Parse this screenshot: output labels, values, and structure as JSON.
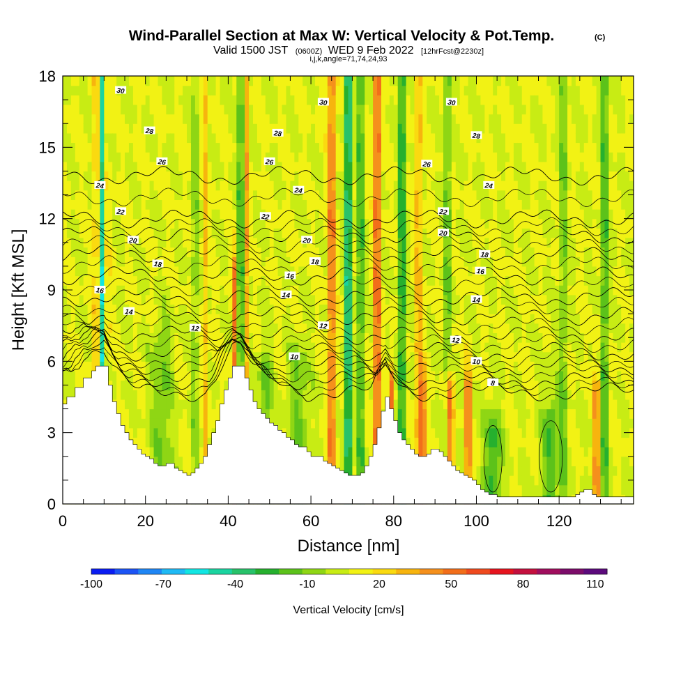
{
  "chart_data": {
    "type": "heatmap",
    "title": "Wind-Parallel Section at Max W: Vertical Velocity & Pot.Temp.",
    "copyright": "(C)",
    "subtitle_main": "Valid 1500 JST",
    "subtitle_z": "(0600Z)",
    "subtitle_date": "WED 9 Feb 2022",
    "subtitle_fcst": "[12hrFcst@2230z]",
    "subtitle_ijk": "i,j,k,angle=71,74,24,93",
    "xlabel": "Distance [nm]",
    "ylabel": "Height [Kft MSL]",
    "xlim": [
      0,
      138
    ],
    "ylim": [
      0,
      18
    ],
    "x_ticks": [
      "0",
      "20",
      "40",
      "60",
      "80",
      "100",
      "120"
    ],
    "y_ticks": [
      "0",
      "3",
      "6",
      "9",
      "12",
      "15",
      "18"
    ],
    "colorbar": {
      "label": "Vertical Velocity [cm/s]",
      "tick_labels": [
        "-100",
        "-70",
        "-40",
        "-10",
        "20",
        "50",
        "80",
        "110"
      ],
      "colors": [
        "#0a1cf2",
        "#1c54f5",
        "#1f86f5",
        "#1fbaf5",
        "#12e6e3",
        "#1ad4a0",
        "#28c26a",
        "#26b02e",
        "#5cc21a",
        "#8fd614",
        "#c8ec14",
        "#f2f214",
        "#fada10",
        "#f7b40e",
        "#f5901c",
        "#f26e1a",
        "#ef4a1e",
        "#e6141e",
        "#c4103e",
        "#a00e5e",
        "#7c0c6a",
        "#5c0a7c"
      ],
      "range": [
        -100,
        115
      ]
    },
    "terrain_profile": {
      "x": [
        0,
        1,
        2,
        3,
        4,
        5,
        6,
        7,
        8,
        9,
        10,
        11,
        12,
        13,
        14,
        15,
        16,
        17,
        18,
        19,
        20,
        21,
        22,
        23,
        24,
        25,
        26,
        27,
        28,
        29,
        30,
        31,
        32,
        33,
        34,
        35,
        36,
        37,
        38,
        39,
        40,
        41,
        42,
        43,
        44,
        45,
        46,
        47,
        48,
        49,
        50,
        51,
        52,
        53,
        54,
        55,
        56,
        57,
        58,
        59,
        60,
        61,
        62,
        63,
        64,
        65,
        66,
        67,
        68,
        69,
        70,
        71,
        72,
        73,
        74,
        75,
        76,
        77,
        78,
        79,
        80,
        81,
        82,
        83,
        84,
        85,
        86,
        87,
        88,
        89,
        90,
        91,
        92,
        93,
        94,
        95,
        96,
        97,
        98,
        99,
        100,
        101,
        102,
        103,
        104,
        105,
        106,
        107,
        108,
        109,
        110,
        111,
        112,
        113,
        114,
        115,
        116,
        117,
        118,
        119,
        120,
        121,
        122,
        123,
        124,
        125,
        126,
        127,
        128,
        129,
        130,
        131,
        132,
        133,
        134,
        135,
        136,
        137,
        138
      ],
      "z": [
        4.2,
        4.5,
        4.5,
        4.9,
        4.9,
        5.3,
        5.3,
        5.6,
        5.8,
        5.8,
        5.8,
        5.0,
        4.3,
        3.8,
        3.3,
        3.0,
        2.7,
        2.5,
        2.3,
        2.1,
        2.0,
        1.9,
        1.7,
        1.6,
        1.6,
        1.7,
        1.7,
        1.5,
        1.4,
        1.3,
        1.2,
        1.3,
        1.5,
        1.7,
        2.0,
        2.5,
        3.0,
        3.5,
        4.2,
        4.8,
        5.3,
        5.8,
        5.8,
        5.8,
        5.3,
        4.8,
        4.3,
        4.0,
        3.8,
        3.6,
        3.4,
        3.3,
        3.1,
        3.0,
        2.8,
        2.7,
        2.5,
        2.4,
        2.4,
        2.2,
        2.0,
        2.0,
        2.0,
        1.8,
        1.7,
        1.6,
        1.5,
        1.4,
        1.3,
        1.2,
        1.2,
        1.2,
        1.3,
        1.6,
        2.0,
        2.5,
        3.2,
        3.9,
        4.5,
        4.0,
        3.5,
        3.0,
        2.7,
        2.5,
        2.3,
        2.1,
        2.0,
        2.0,
        2.1,
        2.3,
        2.3,
        2.2,
        2.0,
        1.8,
        1.6,
        1.4,
        1.3,
        1.2,
        1.1,
        1.0,
        0.8,
        0.6,
        0.5,
        0.4,
        0.4,
        0.3,
        0.3,
        0.3,
        0.3,
        0.3,
        0.3,
        0.3,
        0.3,
        0.3,
        0.3,
        0.3,
        0.3,
        0.3,
        0.3,
        0.3,
        0.3,
        0.3,
        0.3,
        0.3,
        0.4,
        0.5,
        0.6,
        0.6,
        0.4,
        0.3,
        0.3,
        0.3,
        0.3,
        0.3,
        0.3,
        0.3,
        0.3,
        0.3,
        0.3
      ]
    },
    "theta_contours": [
      {
        "value": 8,
        "base": 4.7,
        "labels": [
          [
            104,
            5.1,
            "8"
          ]
        ]
      },
      {
        "value": 10,
        "base": 5.2,
        "labels": [
          [
            56,
            6.2,
            "10"
          ],
          [
            100,
            6.0,
            "10"
          ]
        ]
      },
      {
        "value": 12,
        "base": 5.8,
        "labels": [
          [
            32,
            7.4,
            "12"
          ],
          [
            63,
            7.5,
            "12"
          ],
          [
            95,
            6.9,
            "12"
          ]
        ]
      },
      {
        "value": 14,
        "base": 6.4,
        "labels": [
          [
            16,
            8.1,
            "14"
          ],
          [
            54,
            8.8,
            "14"
          ],
          [
            100,
            8.6,
            "14"
          ]
        ]
      },
      {
        "value": 16,
        "base": 7.1,
        "labels": [
          [
            9,
            9.0,
            "16"
          ],
          [
            55,
            9.6,
            "16"
          ],
          [
            101,
            9.8,
            "16"
          ]
        ]
      },
      {
        "value": 18,
        "base": 7.9,
        "labels": [
          [
            23,
            10.1,
            "18"
          ],
          [
            61,
            10.2,
            "18"
          ],
          [
            102,
            10.5,
            "18"
          ]
        ]
      },
      {
        "value": 20,
        "base": 8.7,
        "labels": [
          [
            17,
            11.1,
            "20"
          ],
          [
            59,
            11.1,
            "20"
          ],
          [
            92,
            11.4,
            "20"
          ]
        ]
      },
      {
        "value": 22,
        "base": 9.6,
        "labels": [
          [
            14,
            12.3,
            "22"
          ],
          [
            49,
            12.1,
            "22"
          ],
          [
            92,
            12.3,
            "22"
          ]
        ]
      },
      {
        "value": 24,
        "base": 10.5,
        "labels": [
          [
            9,
            13.4,
            "24"
          ],
          [
            57,
            13.2,
            "24"
          ],
          [
            103,
            13.4,
            "24"
          ]
        ]
      },
      {
        "value": 26,
        "base": 11.3,
        "labels": [
          [
            24,
            14.4,
            "26"
          ],
          [
            50,
            14.4,
            "26"
          ],
          [
            88,
            14.3,
            "26"
          ]
        ]
      },
      {
        "value": 28,
        "base": 12.0,
        "labels": [
          [
            21,
            15.7,
            "28"
          ],
          [
            52,
            15.6,
            "28"
          ],
          [
            100,
            15.5,
            "28"
          ]
        ]
      },
      {
        "value": 30,
        "base": 13.8,
        "labels": [
          [
            14,
            17.4,
            "30"
          ],
          [
            63,
            16.9,
            "30"
          ],
          [
            94,
            16.9,
            "30"
          ]
        ]
      }
    ],
    "updraft_columns": [
      {
        "x": 8.0,
        "w": 0.4,
        "v": 55,
        "ztop": 18
      },
      {
        "x": 9.5,
        "w": 0.4,
        "v": -55,
        "ztop": 18
      },
      {
        "x": 11.0,
        "w": 0.4,
        "v": 25,
        "ztop": 18
      },
      {
        "x": 32.0,
        "w": 0.6,
        "v": -25,
        "ztop": 18
      },
      {
        "x": 34.5,
        "w": 0.6,
        "v": 20,
        "ztop": 18
      },
      {
        "x": 41.5,
        "w": 0.6,
        "v": 40,
        "ztop": 10.0
      },
      {
        "x": 43.0,
        "w": 0.5,
        "v": -62,
        "ztop": 18
      },
      {
        "x": 44.5,
        "w": 0.5,
        "v": 25,
        "ztop": 18
      },
      {
        "x": 65.0,
        "w": 0.9,
        "v": 45,
        "ztop": 18
      },
      {
        "x": 69.0,
        "w": 0.8,
        "v": -62,
        "ztop": 18
      },
      {
        "x": 72.0,
        "w": 0.7,
        "v": -40,
        "ztop": 18
      },
      {
        "x": 76.0,
        "w": 0.8,
        "v": 55,
        "ztop": 18
      },
      {
        "x": 82.0,
        "w": 0.8,
        "v": -45,
        "ztop": 18
      },
      {
        "x": 86.0,
        "w": 0.7,
        "v": 30,
        "ztop": 18
      },
      {
        "x": 93.0,
        "w": 0.7,
        "v": -30,
        "ztop": 18
      },
      {
        "x": 121.0,
        "w": 0.8,
        "v": -25,
        "ztop": 18
      },
      {
        "x": 131.0,
        "w": 0.8,
        "v": -35,
        "ztop": 18
      },
      {
        "x": 87.0,
        "w": 0.6,
        "v": 60,
        "ztop": 5.0
      },
      {
        "x": 93.5,
        "w": 0.9,
        "v": 52,
        "ztop": 5.0
      },
      {
        "x": 98.0,
        "w": 0.6,
        "v": 60,
        "ztop": 5.0
      },
      {
        "x": 104.0,
        "w": 2.0,
        "v": -35,
        "ztop": 3.2
      },
      {
        "x": 118.0,
        "w": 2.0,
        "v": -30,
        "ztop": 3.8
      },
      {
        "x": 129.0,
        "w": 0.5,
        "v": 70,
        "ztop": 5.0
      },
      {
        "x": 57.0,
        "w": 2.5,
        "v": -20,
        "ztop": 6.2
      },
      {
        "x": 24.0,
        "w": 2.5,
        "v": -20,
        "ztop": 7.0
      },
      {
        "x": 49.0,
        "w": 1.5,
        "v": -25,
        "ztop": 6.0
      },
      {
        "x": 79.5,
        "w": 0.5,
        "v": 45,
        "ztop": 5.2
      }
    ],
    "grid_nx": 138,
    "grid_ny": 45
  }
}
